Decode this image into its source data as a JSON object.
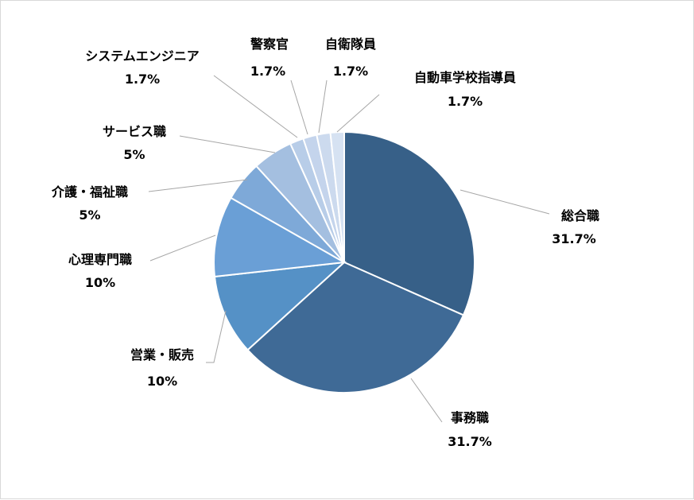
{
  "chart_data": {
    "type": "pie",
    "title": "",
    "categories": [
      "総合職",
      "事務職",
      "営業・販売",
      "心理専門職",
      "介護・福祉職",
      "サービス職",
      "システムエンジニア",
      "警察官",
      "自衛隊員",
      "自動車学校指導員"
    ],
    "values": [
      31.7,
      31.7,
      10,
      10,
      5,
      5,
      1.7,
      1.7,
      1.7,
      1.7
    ],
    "value_labels": [
      "31.7%",
      "31.7%",
      "10%",
      "10%",
      "5%",
      "5%",
      "1.7%",
      "1.7%",
      "1.7%",
      "1.7%"
    ],
    "colors": [
      "#376088",
      "#3f6a96",
      "#5591c6",
      "#6a9fd6",
      "#7ea9d8",
      "#a4bfe0",
      "#b8cde8",
      "#c4d4ec",
      "#ccdaee",
      "#d6e2f2"
    ],
    "legend": "none",
    "start": "12 o'clock",
    "direction": "clockwise",
    "labels": "outside with leader lines"
  }
}
